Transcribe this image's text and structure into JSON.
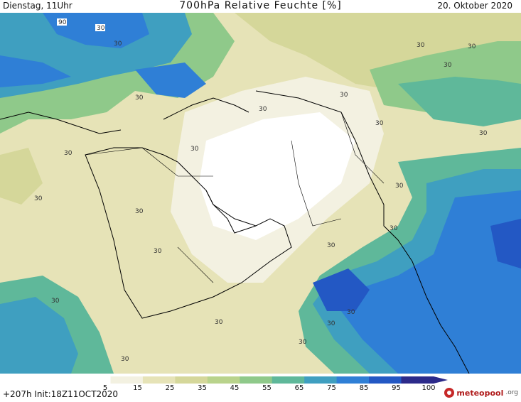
{
  "header": {
    "left": "Dienstag, 11Uhr",
    "title": "700hPa Relative Feuchte [%]",
    "right": "20. Oktober 2020"
  },
  "footer": {
    "run": "+207h  Init:18Z11OCT2020",
    "logo_name": "meteopool",
    "logo_tld": ".org"
  },
  "colorbar": {
    "ticks": [
      "5",
      "15",
      "25",
      "35",
      "45",
      "55",
      "65",
      "75",
      "85",
      "95",
      "100"
    ],
    "colors": [
      "#ffffff",
      "#f3f1e1",
      "#e6e3b7",
      "#d5d79a",
      "#b9d38c",
      "#8fc98a",
      "#5fb89a",
      "#3f9fc0",
      "#2f7fd6",
      "#2358c4",
      "#2c2a8a"
    ]
  },
  "contour_labels": [
    "30",
    "90"
  ]
}
